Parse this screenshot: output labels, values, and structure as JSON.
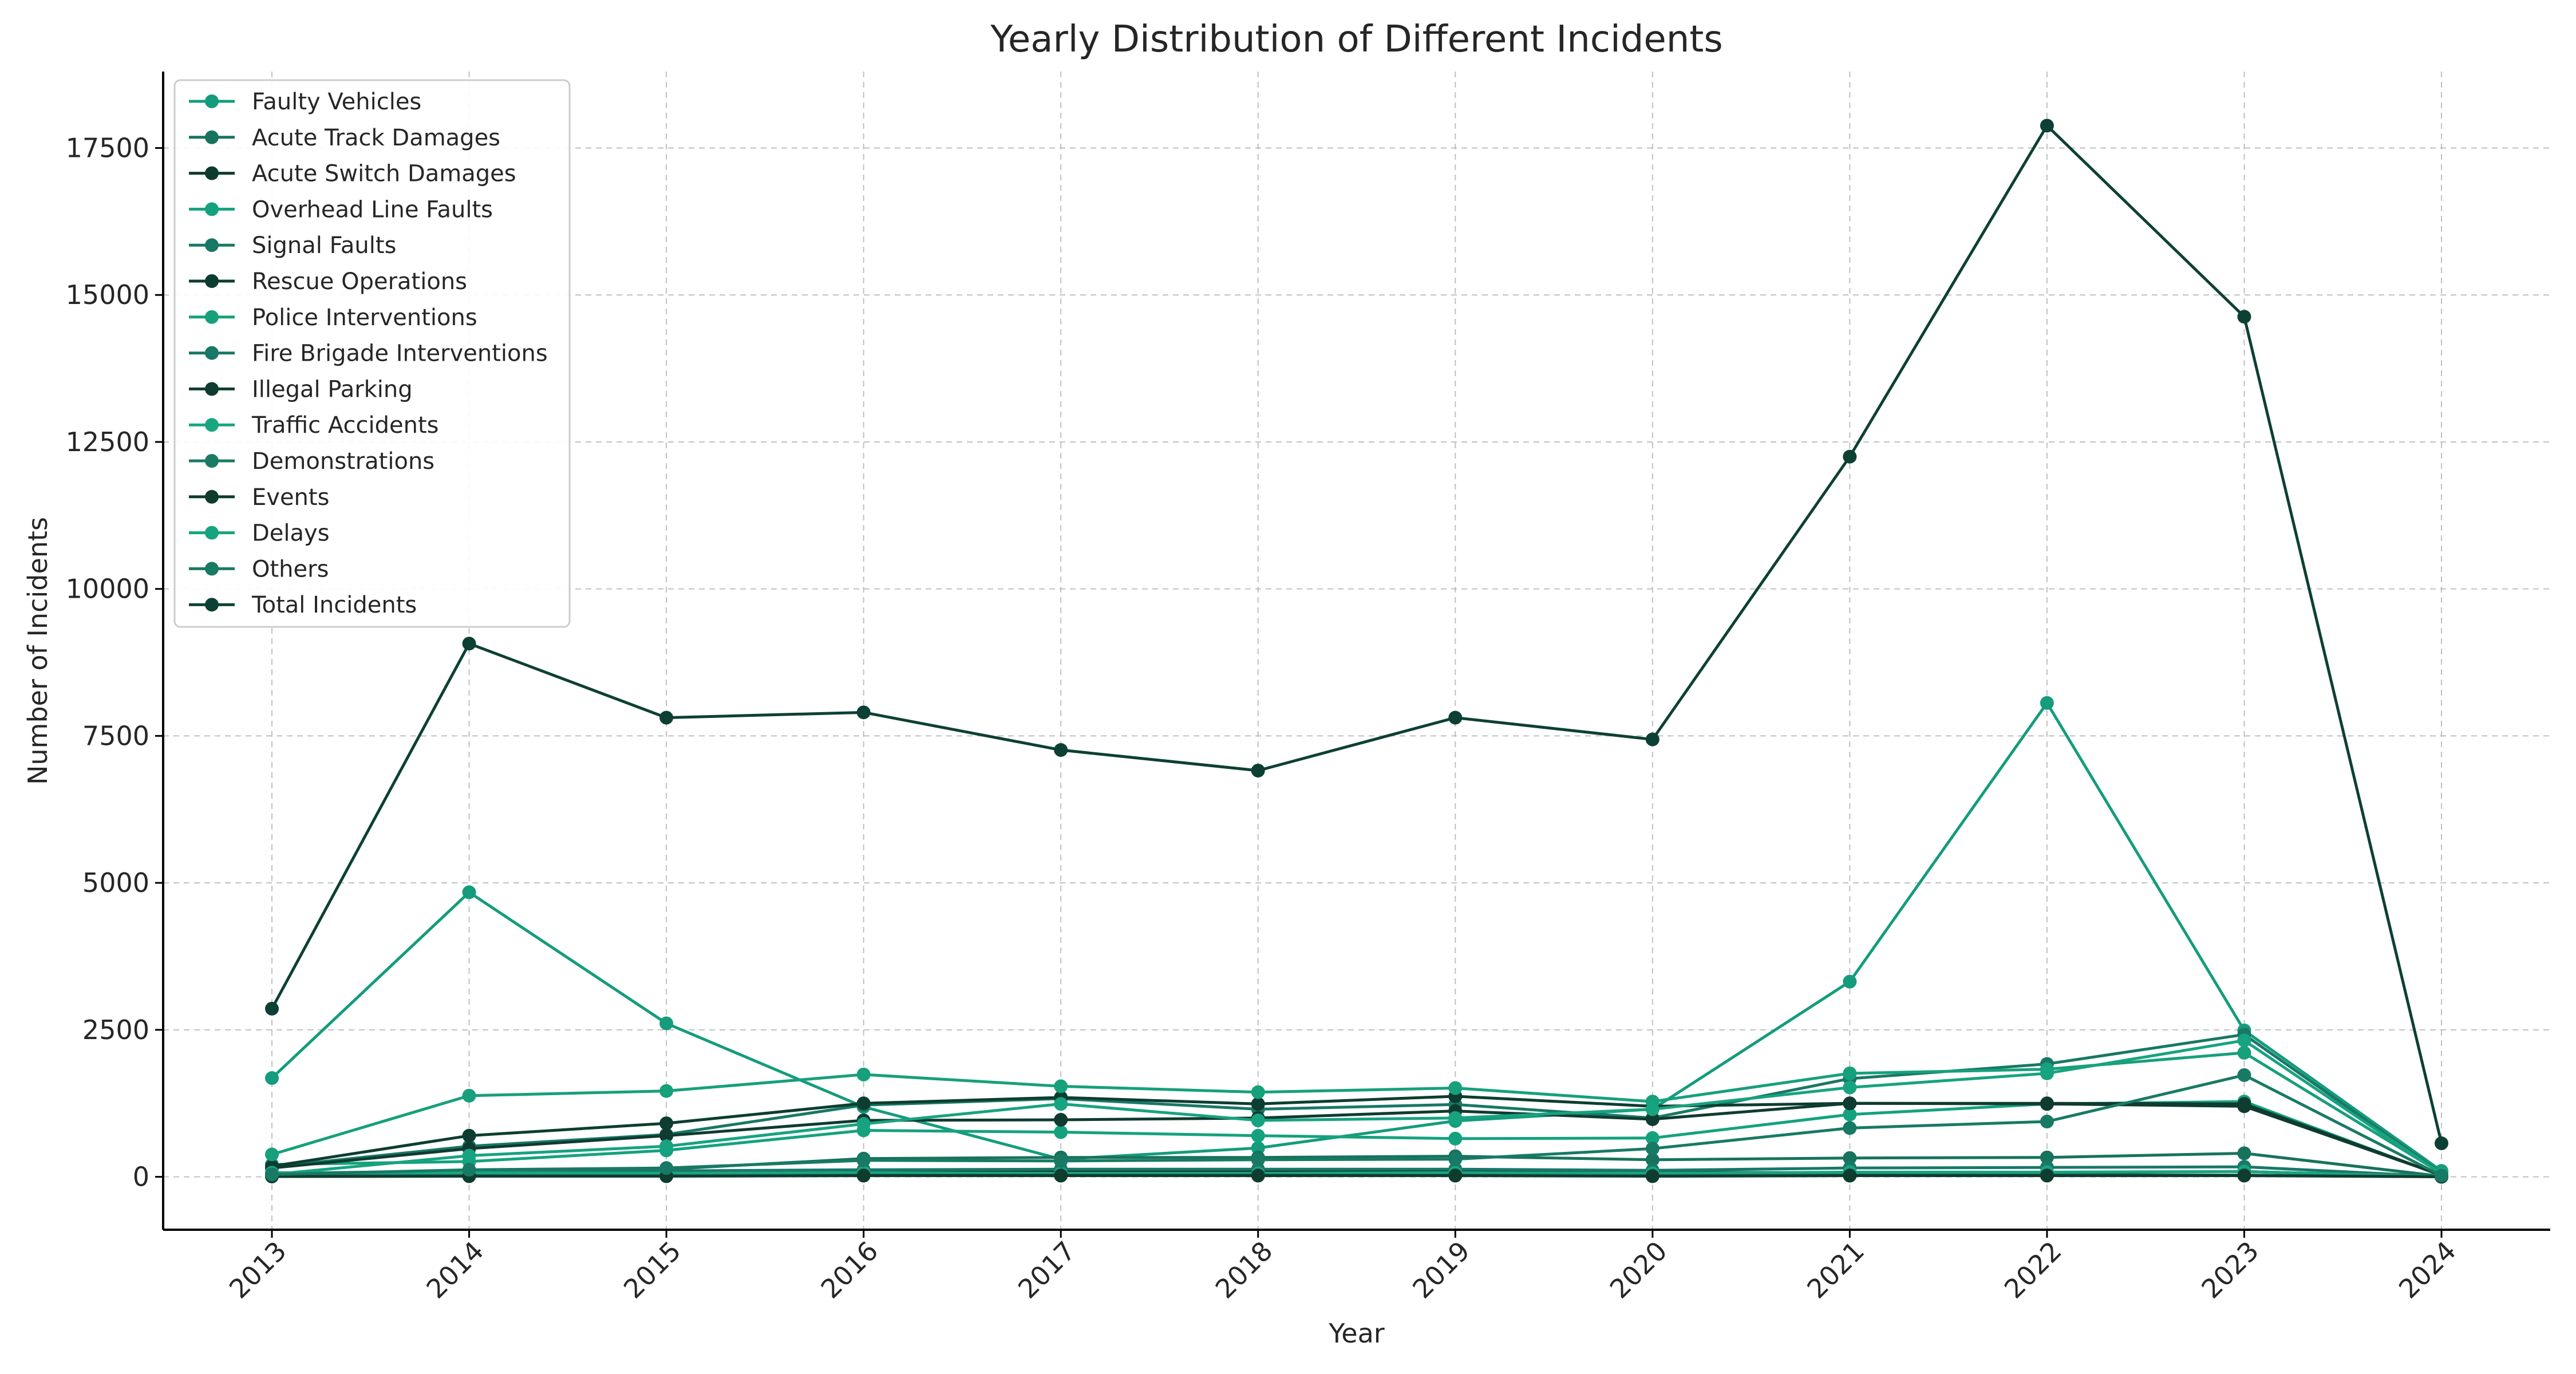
{
  "chart_data": {
    "type": "line",
    "title": "Yearly Distribution of Different Incidents",
    "xlabel": "Year",
    "ylabel": "Number of Incidents",
    "x": [
      "2013",
      "2014",
      "2015",
      "2016",
      "2017",
      "2018",
      "2019",
      "2020",
      "2021",
      "2022",
      "2023",
      "2024"
    ],
    "ylim": [
      -900,
      18800
    ],
    "yticks": [
      0,
      2500,
      5000,
      7500,
      10000,
      12500,
      15000,
      17500
    ],
    "grid": true,
    "legend_position": "top-left",
    "series": [
      {
        "name": "Faulty Vehicles",
        "color": "#149c7c",
        "values": [
          1680,
          4840,
          2610,
          1190,
          300,
          490,
          950,
          1150,
          3320,
          8060,
          2490,
          100
        ]
      },
      {
        "name": "Acute Track Damages",
        "color": "#17735c",
        "values": [
          60,
          100,
          130,
          310,
          330,
          330,
          350,
          290,
          320,
          330,
          400,
          10
        ]
      },
      {
        "name": "Acute Switch Damages",
        "color": "#0e3b2e",
        "values": [
          20,
          30,
          30,
          90,
          90,
          90,
          90,
          80,
          70,
          70,
          90,
          5
        ]
      },
      {
        "name": "Overhead Line Faults",
        "color": "#14a27e",
        "values": [
          210,
          260,
          450,
          790,
          760,
          700,
          650,
          660,
          1060,
          1240,
          1280,
          20
        ]
      },
      {
        "name": "Signal Faults",
        "color": "#187866",
        "values": [
          170,
          520,
          720,
          1220,
          1330,
          1150,
          1230,
          1000,
          1670,
          1920,
          2420,
          60
        ]
      },
      {
        "name": "Rescue Operations",
        "color": "#0d3d30",
        "values": [
          180,
          700,
          910,
          1250,
          1350,
          1240,
          1370,
          1200,
          1250,
          1250,
          1240,
          30
        ]
      },
      {
        "name": "Police Interventions",
        "color": "#16a07c",
        "values": [
          380,
          1380,
          1460,
          1740,
          1540,
          1440,
          1510,
          1280,
          1760,
          1830,
          2110,
          60
        ]
      },
      {
        "name": "Fire Brigade Interventions",
        "color": "#197867",
        "values": [
          30,
          60,
          100,
          120,
          130,
          130,
          130,
          110,
          150,
          160,
          170,
          5
        ]
      },
      {
        "name": "Illegal Parking",
        "color": "#0f3b30",
        "values": [
          150,
          480,
          700,
          960,
          970,
          1000,
          1120,
          980,
          1250,
          1240,
          1200,
          30
        ]
      },
      {
        "name": "Traffic Accidents",
        "color": "#18a582",
        "values": [
          70,
          70,
          60,
          70,
          60,
          60,
          70,
          60,
          80,
          80,
          90,
          5
        ]
      },
      {
        "name": "Demonstrations",
        "color": "#1a7a66",
        "values": [
          10,
          20,
          20,
          30,
          30,
          30,
          30,
          20,
          30,
          30,
          30,
          2
        ]
      },
      {
        "name": "Events",
        "color": "#0e3c2f",
        "values": [
          5,
          10,
          10,
          20,
          20,
          20,
          20,
          10,
          20,
          20,
          20,
          1
        ]
      },
      {
        "name": "Delays",
        "color": "#17a37f",
        "values": [
          40,
          360,
          520,
          900,
          1240,
          960,
          1000,
          1150,
          1520,
          1760,
          2320,
          50
        ]
      },
      {
        "name": "Others",
        "color": "#187a64",
        "values": [
          40,
          120,
          150,
          280,
          270,
          290,
          300,
          480,
          830,
          940,
          1730,
          20
        ]
      },
      {
        "name": "Total Incidents",
        "color": "#0d4034",
        "values": [
          2860,
          9070,
          7810,
          7900,
          7260,
          6910,
          7810,
          7440,
          12250,
          17880,
          14630,
          570
        ]
      }
    ]
  }
}
